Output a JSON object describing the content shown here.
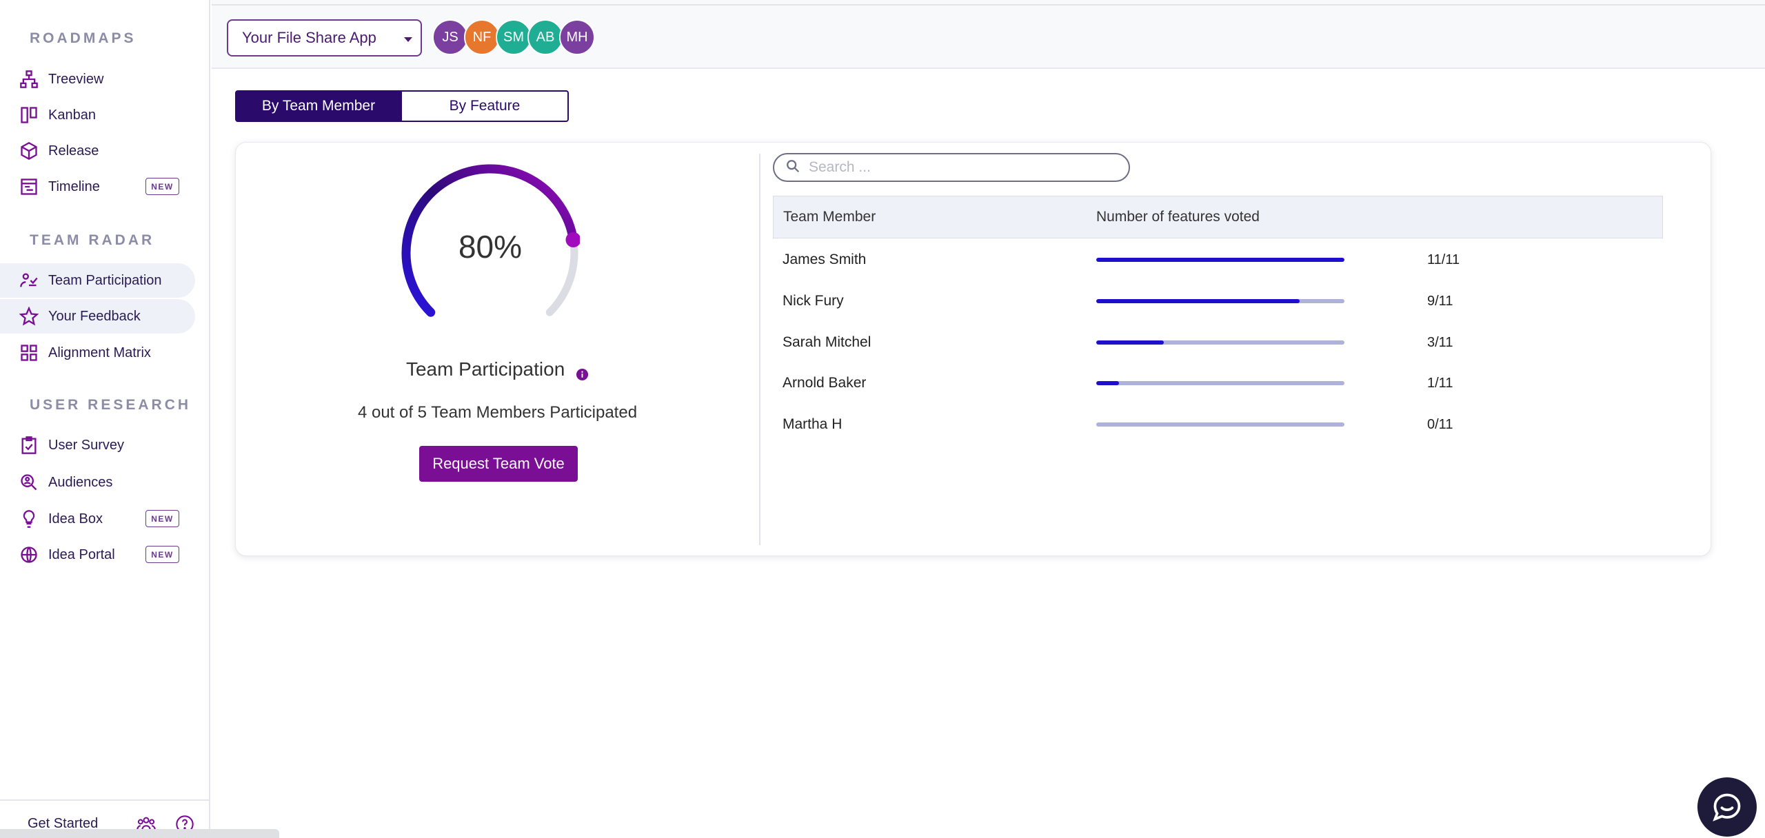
{
  "sidebar": {
    "sections": [
      {
        "title": "ROADMAPS",
        "items": [
          {
            "label": "Treeview",
            "icon": "tree-icon"
          },
          {
            "label": "Kanban",
            "icon": "kanban-icon"
          },
          {
            "label": "Release",
            "icon": "box-icon"
          },
          {
            "label": "Timeline",
            "icon": "timeline-icon",
            "badge": "NEW"
          }
        ]
      },
      {
        "title": "TEAM RADAR",
        "items": [
          {
            "label": "Team Participation",
            "icon": "team-participation-icon"
          },
          {
            "label": "Your Feedback",
            "icon": "star-icon"
          },
          {
            "label": "Alignment Matrix",
            "icon": "grid-icon"
          }
        ]
      },
      {
        "title": "USER RESEARCH",
        "items": [
          {
            "label": "User Survey",
            "icon": "clipboard-check-icon"
          },
          {
            "label": "Audiences",
            "icon": "user-search-icon"
          },
          {
            "label": "Idea Box",
            "icon": "lightbulb-icon",
            "badge": "NEW"
          },
          {
            "label": "Idea Portal",
            "icon": "globe-icon",
            "badge": "NEW"
          }
        ]
      }
    ],
    "footer": {
      "get_started": "Get Started"
    }
  },
  "topbar": {
    "app_select": "Your File Share App",
    "avatars": [
      {
        "initials": "JS",
        "color": "#7b3fa0"
      },
      {
        "initials": "NF",
        "color": "#e8772e"
      },
      {
        "initials": "SM",
        "color": "#1fae93"
      },
      {
        "initials": "AB",
        "color": "#1fae93"
      },
      {
        "initials": "MH",
        "color": "#7b3fa0"
      }
    ]
  },
  "view_toggle": {
    "by_team_member": "By Team Member",
    "by_feature": "By Feature"
  },
  "summary": {
    "percent": "80%",
    "percent_value": 80,
    "title": "Team Participation",
    "participated_text": "4 out of 5 Team Members Participated",
    "request_button": "Request Team Vote"
  },
  "search": {
    "placeholder": "Search ..."
  },
  "table": {
    "headers": {
      "member": "Team Member",
      "votes": "Number of features voted"
    },
    "rows": [
      {
        "name": "James Smith",
        "voted": 11,
        "total": 11,
        "count": "11/11"
      },
      {
        "name": "Nick Fury",
        "voted": 9,
        "total": 11,
        "count": "9/11"
      },
      {
        "name": "Sarah Mitchel",
        "voted": 3,
        "total": 11,
        "count": "3/11"
      },
      {
        "name": "Arnold Baker",
        "voted": 1,
        "total": 11,
        "count": "1/11"
      },
      {
        "name": "Martha H",
        "voted": 0,
        "total": 11,
        "count": "0/11"
      }
    ]
  },
  "colors": {
    "accent": "#7a0f96",
    "navy": "#2a0a6b",
    "bar": "#1e0fcf",
    "track": "#aeb2db"
  }
}
